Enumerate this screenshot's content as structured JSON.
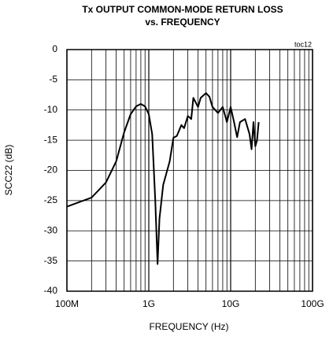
{
  "chart_data": {
    "type": "line",
    "title": [
      "Tx OUTPUT COMMON-MODE RETURN LOSS",
      "vs. FREQUENCY"
    ],
    "annotation": "toc12",
    "xlabel": "FREQUENCY (Hz)",
    "ylabel": "SCC22 (dB)",
    "xscale": "log",
    "grid": true,
    "xlim": [
      100000000,
      100000000000
    ],
    "ylim": [
      -40,
      0
    ],
    "xticks": [
      {
        "value": 100000000,
        "label": "100M"
      },
      {
        "value": 1000000000,
        "label": "1G"
      },
      {
        "value": 10000000000,
        "label": "10G"
      },
      {
        "value": 100000000000,
        "label": "100G"
      }
    ],
    "yticks": [
      0,
      -5,
      -10,
      -15,
      -20,
      -25,
      -30,
      -35,
      -40
    ],
    "series": [
      {
        "name": "SCC22",
        "color": "#000000",
        "x": [
          100000000,
          200000000,
          300000000,
          400000000,
          500000000,
          600000000,
          700000000,
          800000000,
          900000000,
          1000000000,
          1100000000,
          1200000000,
          1280000000,
          1350000000,
          1500000000,
          1800000000,
          2000000000,
          2200000000,
          2500000000,
          2700000000,
          3000000000,
          3300000000,
          3500000000,
          4000000000,
          4300000000,
          5000000000,
          5500000000,
          6000000000,
          7000000000,
          8000000000,
          9000000000,
          10000000000,
          11000000000,
          12000000000,
          13000000000,
          15000000000,
          17000000000,
          18000000000,
          19000000000,
          20000000000,
          21000000000,
          22000000000
        ],
        "values": [
          -26,
          -24.5,
          -22,
          -18.5,
          -13.7,
          -10.7,
          -9.4,
          -9,
          -9.4,
          -10.7,
          -14,
          -25,
          -35.5,
          -28,
          -22.4,
          -18.5,
          -14.6,
          -14.3,
          -12.5,
          -13,
          -11,
          -11.5,
          -8,
          -9.5,
          -8,
          -7.2,
          -7.8,
          -9.5,
          -10.5,
          -9.5,
          -12,
          -9.5,
          -12,
          -14.5,
          -12,
          -11.5,
          -14,
          -16.5,
          -12,
          -16,
          -15,
          -12
        ]
      }
    ]
  }
}
